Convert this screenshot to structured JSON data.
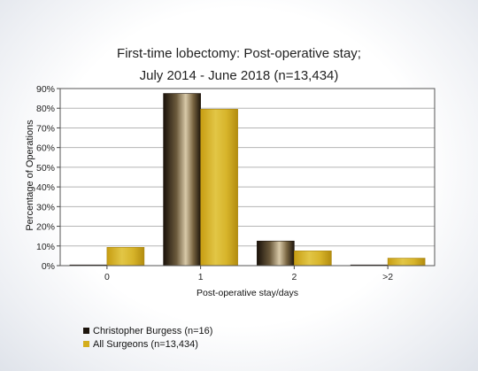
{
  "chart_data": {
    "type": "bar",
    "title_line1": "First-time lobectomy: Post-operative stay;",
    "title_line2": "July 2014 - June 2018 (n=13,434)",
    "xlabel": "Post-operative stay/days",
    "ylabel": "Percentage of Operations",
    "categories": [
      "0",
      "1",
      "2",
      ">2"
    ],
    "ylim": [
      0,
      90
    ],
    "yticks": [
      "0%",
      "10%",
      "20%",
      "30%",
      "40%",
      "50%",
      "60%",
      "70%",
      "80%",
      "90%"
    ],
    "series": [
      {
        "name": "Christopher Burgess (n=16)",
        "values": [
          0.3,
          87.5,
          12.5,
          0.3
        ],
        "color": "#2a1e10"
      },
      {
        "name": "All Surgeons (n=13,434)",
        "values": [
          9.3,
          79.5,
          7.5,
          3.8
        ],
        "color": "#d4ae1c"
      }
    ],
    "grid": true,
    "legend_position": "bottom-left"
  }
}
